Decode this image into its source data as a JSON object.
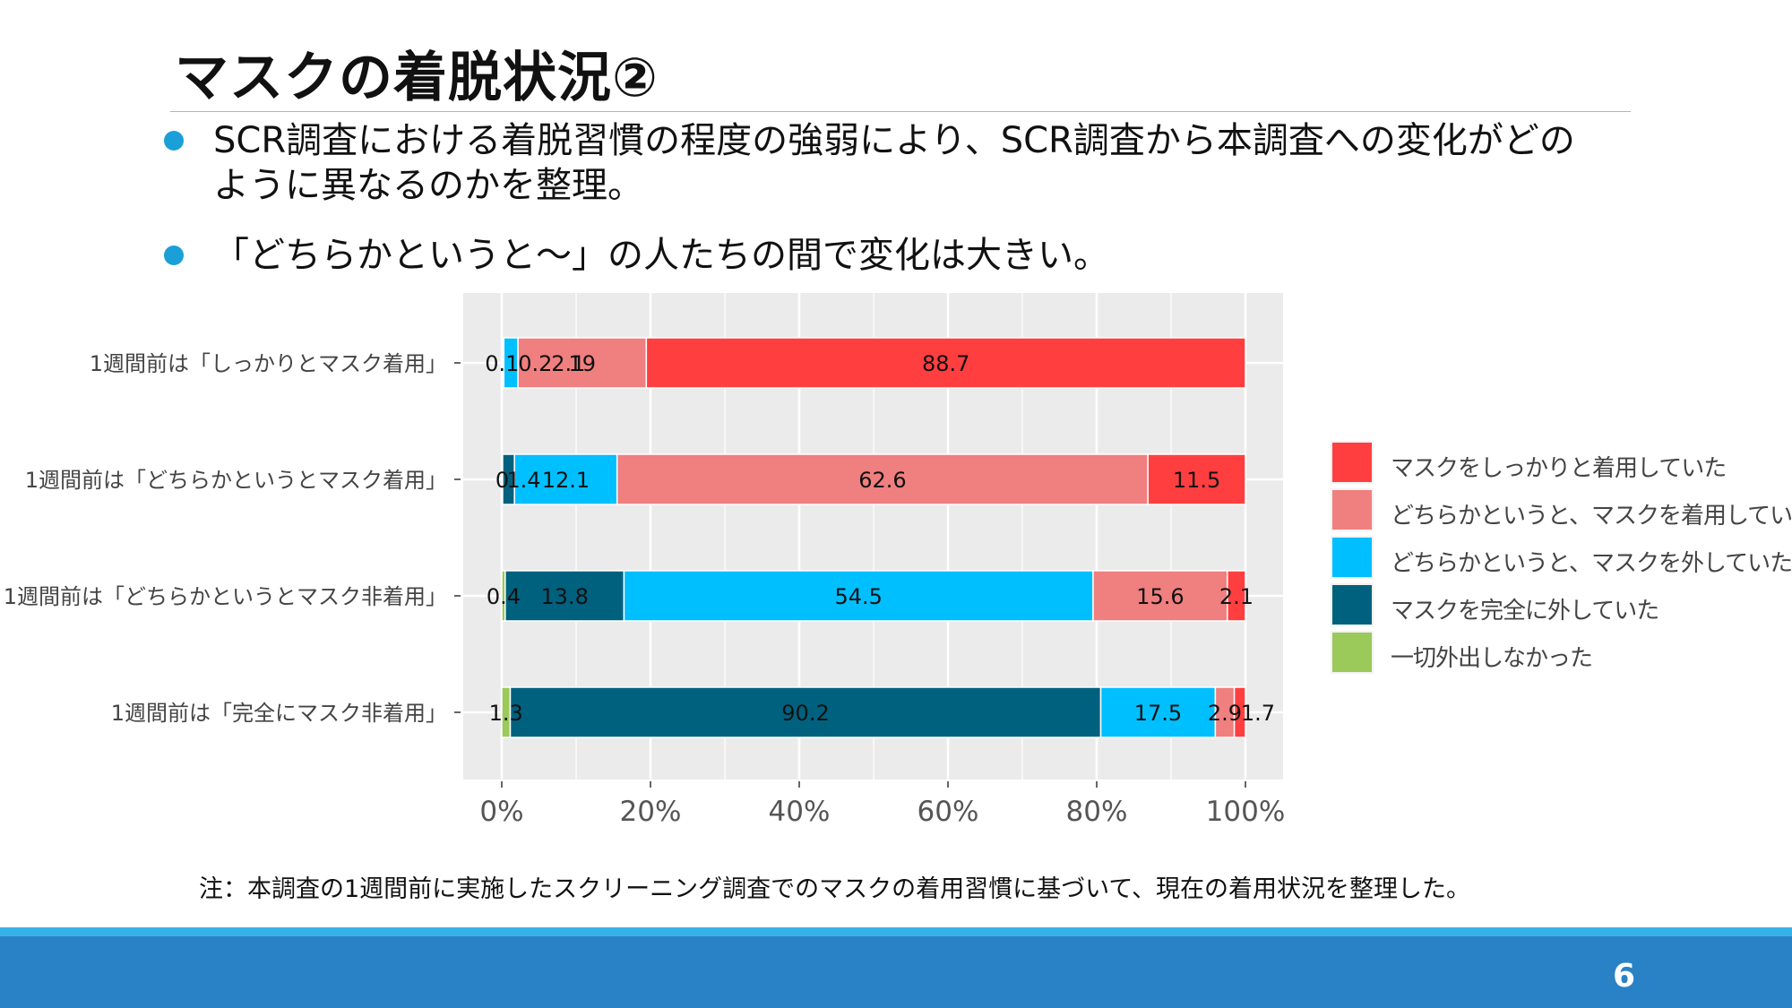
{
  "slide": {
    "title": "マスクの着脱状況②",
    "bullets": [
      [
        "SCR調査における着脱習慣の程度の強弱により、SCR調査から本調査への変化がどの",
        "ように異なるのかを整理。"
      ],
      [
        "「どちらかというと～」の人たちの間で変化は大きい。"
      ]
    ],
    "note": "注：本調査の1週間前に実施したスクリーニング調査でのマスクの着用習慣に基づいて、現在の着用状況を整理した。",
    "page_number": "6"
  },
  "chart_data": {
    "type": "bar",
    "orientation": "horizontal",
    "stacked": true,
    "normalized": true,
    "categories": [
      "1週間前は「しっかりとマスク着用」",
      "1週間前は「どちらかというとマスク着用」",
      "1週間前は「どちらかというとマスク非着用」",
      "1週間前は「完全にマスク非着用」"
    ],
    "series": [
      {
        "name": "一切外出しなかった",
        "color": "#9bc95a",
        "values": [
          0.1,
          0.1,
          0.4,
          1.3
        ],
        "labels": [
          "0.1",
          "0",
          "0.4",
          "1.3"
        ]
      },
      {
        "name": "マスクを完全に外していた",
        "color": "#00617f",
        "values": [
          0.2,
          1.4,
          13.8,
          90.2
        ],
        "labels": [
          "0.2",
          "1.4",
          "13.8",
          "90.2"
        ]
      },
      {
        "name": "どちらかというと、マスクを外していた",
        "color": "#00bfff",
        "values": [
          2.1,
          12.1,
          54.5,
          17.5
        ],
        "labels": [
          "2.1",
          "12.1",
          "54.5",
          "17.5"
        ]
      },
      {
        "name": "どちらかというと、マスクを着用していた",
        "color": "#f07f7f",
        "values": [
          19,
          62.6,
          15.6,
          2.9
        ],
        "labels": [
          "19",
          "62.6",
          "15.6",
          "2.9"
        ]
      },
      {
        "name": "マスクをしっかりと着用していた",
        "color": "#ff3f3f",
        "values": [
          88.7,
          11.5,
          2.1,
          1.7
        ],
        "labels": [
          "88.7",
          "11.5",
          "2.1",
          "1.7"
        ]
      }
    ],
    "legend_order": [
      "マスクをしっかりと着用していた",
      "どちらかというと、マスクを着用していた",
      "どちらかというと、マスクを外していた",
      "マスクを完全に外していた",
      "一切外出しなかった"
    ],
    "x_ticks": [
      "0%",
      "20%",
      "40%",
      "60%",
      "80%",
      "100%"
    ],
    "xlim": [
      0,
      100
    ],
    "grid": true,
    "legend_position": "right",
    "panel_background": "#ebebeb"
  }
}
